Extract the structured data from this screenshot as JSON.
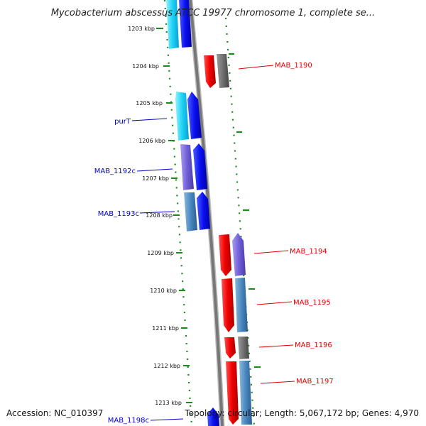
{
  "title": "Mycobacterium abscessus ATCC 19977 chromosome 1, complete se...",
  "footer": {
    "accession": "Accession: NC_010397",
    "info": "Topology: circular; Length: 5,067,172 bp; Genes: 4,970"
  },
  "ticks": [
    "1203 kbp",
    "1204 kbp",
    "1205 kbp",
    "1206 kbp",
    "1207 kbp",
    "1208 kbp",
    "1209 kbp",
    "1210 kbp",
    "1211 kbp",
    "1212 kbp",
    "1213 kbp"
  ],
  "gene_labels": {
    "left": [
      "purT",
      "MAB_1192c",
      "MAB_1193c",
      "MAB_1198c"
    ],
    "right": [
      "MAB_1190",
      "MAB_1194",
      "MAB_1195",
      "MAB_1196",
      "MAB_1197"
    ]
  },
  "colors": {
    "reverse_strand_label": "#0000cc",
    "forward_strand_label": "#dd0000",
    "backbone": "#808080",
    "ticks": "#1a8a1a"
  }
}
